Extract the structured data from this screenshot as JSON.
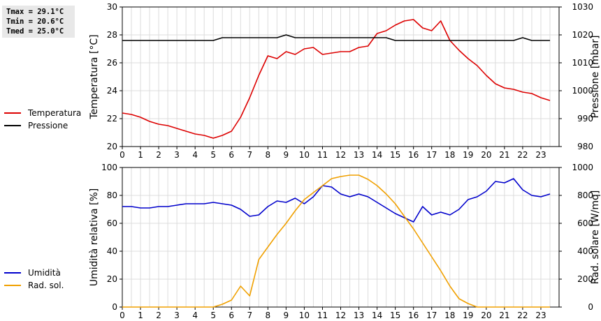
{
  "stats": {
    "tmax": "Tmax = 29.1°C",
    "tmin": "Tmin = 20.6°C",
    "tmed": "Tmed = 25.0°C"
  },
  "legend_top": [
    {
      "label": "Temperatura",
      "color": "#dd0000"
    },
    {
      "label": "Pressione",
      "color": "#000000"
    }
  ],
  "legend_bottom": [
    {
      "label": "Umidità",
      "color": "#0000cc"
    },
    {
      "label": "Rad. sol.",
      "color": "#f0a000"
    }
  ],
  "chart_data": [
    {
      "type": "line",
      "x_ticks": [
        "0",
        "1",
        "2",
        "3",
        "4",
        "5",
        "6",
        "7",
        "8",
        "9",
        "10",
        "11",
        "12",
        "13",
        "14",
        "15",
        "16",
        "17",
        "18",
        "19",
        "20",
        "21",
        "22",
        "23"
      ],
      "xlim": [
        0,
        24
      ],
      "ylabel": "Temperatura [°C]",
      "ylim": [
        20,
        30
      ],
      "y_ticks": [
        "20",
        "22",
        "24",
        "26",
        "28",
        "30"
      ],
      "y2label": "Pressione [mbar]",
      "y2lim": [
        980,
        1030
      ],
      "y2_ticks": [
        "980",
        "990",
        "1000",
        "1010",
        "1020",
        "1030"
      ],
      "grid": true,
      "series": [
        {
          "name": "Temperatura",
          "axis": "left",
          "color": "#dd0000",
          "x": [
            0,
            0.5,
            1,
            1.5,
            2,
            2.5,
            3,
            3.5,
            4,
            4.5,
            5,
            5.5,
            6,
            6.5,
            7,
            7.5,
            8,
            8.5,
            9,
            9.5,
            10,
            10.5,
            11,
            11.5,
            12,
            12.5,
            13,
            13.5,
            14,
            14.5,
            15,
            15.5,
            16,
            16.5,
            17,
            17.5,
            18,
            18.5,
            19,
            19.5,
            20,
            20.5,
            21,
            21.5,
            22,
            22.5,
            23,
            23.5
          ],
          "values": [
            22.4,
            22.3,
            22.1,
            21.8,
            21.6,
            21.5,
            21.3,
            21.1,
            20.9,
            20.8,
            20.6,
            20.8,
            21.1,
            22.1,
            23.5,
            25.1,
            26.5,
            26.3,
            26.8,
            26.6,
            27.0,
            27.1,
            26.6,
            26.7,
            26.8,
            26.8,
            27.1,
            27.2,
            28.1,
            28.3,
            28.7,
            29.0,
            29.1,
            28.5,
            28.3,
            29.0,
            27.6,
            26.9,
            26.3,
            25.8,
            25.1,
            24.5,
            24.2,
            24.1,
            23.9,
            23.8,
            23.5,
            23.3
          ]
        },
        {
          "name": "Pressione",
          "axis": "right",
          "color": "#000000",
          "x": [
            0,
            5,
            5.5,
            8.5,
            9,
            9.5,
            14.5,
            15,
            21.5,
            22,
            22.5,
            23.5
          ],
          "values": [
            1018,
            1018,
            1019,
            1019,
            1020,
            1019,
            1019,
            1018,
            1018,
            1019,
            1018,
            1018
          ]
        }
      ]
    },
    {
      "type": "line",
      "x_ticks": [
        "0",
        "1",
        "2",
        "3",
        "4",
        "5",
        "6",
        "7",
        "8",
        "9",
        "10",
        "11",
        "12",
        "13",
        "14",
        "15",
        "16",
        "17",
        "18",
        "19",
        "20",
        "21",
        "22",
        "23"
      ],
      "xlim": [
        0,
        24
      ],
      "ylabel": "Umidità relativa [%]",
      "ylim": [
        0,
        100
      ],
      "y_ticks": [
        "0",
        "20",
        "40",
        "60",
        "80",
        "100"
      ],
      "y2label": "Rad. solare [W/mq]",
      "y2lim": [
        0,
        1000
      ],
      "y2_ticks": [
        "0",
        "200",
        "400",
        "600",
        "800",
        "1000"
      ],
      "grid": true,
      "series": [
        {
          "name": "Umidità",
          "axis": "left",
          "color": "#0000cc",
          "x": [
            0,
            0.5,
            1,
            1.5,
            2,
            2.5,
            3,
            3.5,
            4,
            4.5,
            5,
            5.5,
            6,
            6.5,
            7,
            7.5,
            8,
            8.5,
            9,
            9.5,
            10,
            10.5,
            11,
            11.5,
            12,
            12.5,
            13,
            13.5,
            14,
            14.5,
            15,
            15.5,
            16,
            16.5,
            17,
            17.5,
            18,
            18.5,
            19,
            19.5,
            20,
            20.5,
            21,
            21.5,
            22,
            22.5,
            23,
            23.5
          ],
          "values": [
            72,
            72,
            71,
            71,
            72,
            72,
            73,
            74,
            74,
            74,
            75,
            74,
            73,
            70,
            65,
            66,
            72,
            76,
            75,
            78,
            74,
            79,
            87,
            86,
            81,
            79,
            81,
            79,
            75,
            71,
            67,
            64,
            61,
            72,
            66,
            68,
            66,
            70,
            77,
            79,
            83,
            90,
            89,
            92,
            84,
            80,
            79,
            81
          ]
        },
        {
          "name": "Rad. sol.",
          "axis": "right",
          "color": "#f0a000",
          "x": [
            0,
            5,
            5.5,
            6,
            6.5,
            7,
            7.5,
            8,
            8.5,
            9,
            9.5,
            10,
            10.5,
            11,
            11.5,
            12,
            12.5,
            13,
            13.5,
            14,
            14.5,
            15,
            15.5,
            16,
            16.5,
            17,
            17.5,
            18,
            18.5,
            19,
            19.5,
            20,
            23.5
          ],
          "values": [
            0,
            0,
            20,
            50,
            150,
            80,
            340,
            430,
            520,
            600,
            690,
            770,
            820,
            870,
            920,
            935,
            945,
            945,
            915,
            870,
            810,
            740,
            650,
            560,
            460,
            360,
            260,
            150,
            60,
            25,
            0,
            0,
            0
          ]
        }
      ]
    }
  ]
}
